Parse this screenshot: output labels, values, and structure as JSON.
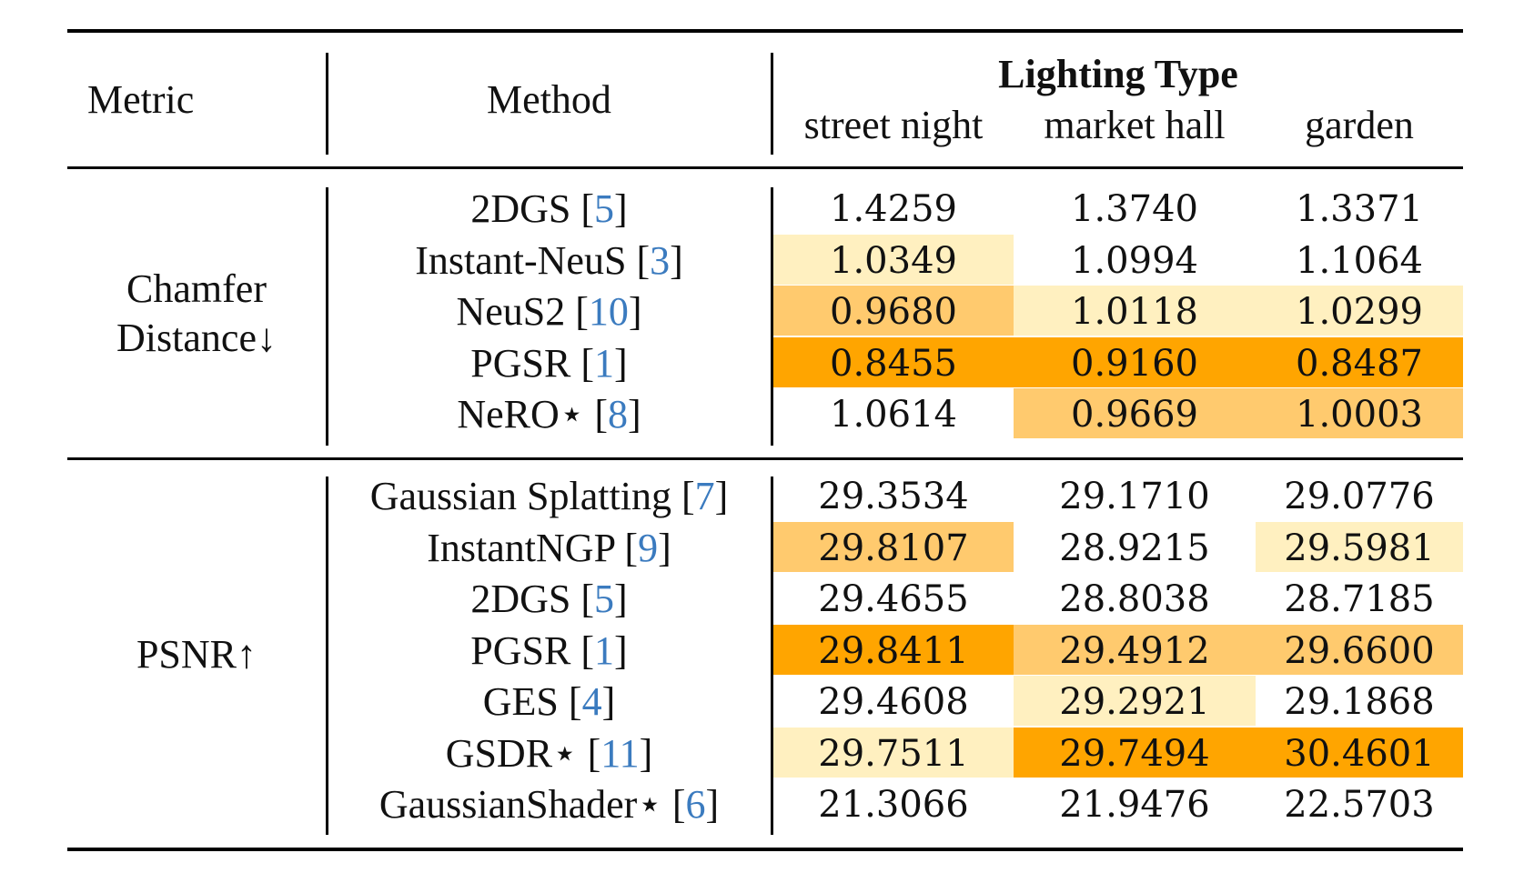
{
  "header": {
    "metric": "Metric",
    "method": "Method",
    "group_title": "Lighting Type",
    "columns": [
      "street night",
      "market hall",
      "garden"
    ]
  },
  "colors": {
    "best": "#ffa500",
    "second": "#ffca6e",
    "third": "#fff0c0",
    "citation": "#3b7bbf"
  },
  "sections": [
    {
      "metric_lines": [
        "Chamfer",
        "Distance↓"
      ],
      "rows": [
        {
          "method": "2DGS",
          "cite": "5",
          "values": [
            "1.4259",
            "1.3740",
            "1.3371"
          ],
          "ranks": [
            0,
            0,
            0
          ]
        },
        {
          "method": "Instant-NeuS",
          "cite": "3",
          "values": [
            "1.0349",
            "1.0994",
            "1.1064"
          ],
          "ranks": [
            3,
            0,
            0
          ]
        },
        {
          "method": "NeuS2",
          "cite": "10",
          "values": [
            "0.9680",
            "1.0118",
            "1.0299"
          ],
          "ranks": [
            2,
            3,
            3
          ]
        },
        {
          "method": "PGSR",
          "cite": "1",
          "values": [
            "0.8455",
            "0.9160",
            "0.8487"
          ],
          "ranks": [
            1,
            1,
            1
          ]
        },
        {
          "method": "NeRO⋆",
          "cite": "8",
          "values": [
            "1.0614",
            "0.9669",
            "1.0003"
          ],
          "ranks": [
            0,
            2,
            2
          ]
        }
      ]
    },
    {
      "metric_lines": [
        "PSNR↑"
      ],
      "rows": [
        {
          "method": "Gaussian Splatting",
          "cite": "7",
          "values": [
            "29.3534",
            "29.1710",
            "29.0776"
          ],
          "ranks": [
            0,
            0,
            0
          ]
        },
        {
          "method": "InstantNGP",
          "cite": "9",
          "values": [
            "29.8107",
            "28.9215",
            "29.5981"
          ],
          "ranks": [
            2,
            0,
            3
          ]
        },
        {
          "method": "2DGS",
          "cite": "5",
          "values": [
            "29.4655",
            "28.8038",
            "28.7185"
          ],
          "ranks": [
            0,
            0,
            0
          ]
        },
        {
          "method": "PGSR",
          "cite": "1",
          "values": [
            "29.8411",
            "29.4912",
            "29.6600"
          ],
          "ranks": [
            1,
            2,
            2
          ]
        },
        {
          "method": "GES",
          "cite": "4",
          "values": [
            "29.4608",
            "29.2921",
            "29.1868"
          ],
          "ranks": [
            0,
            3,
            0
          ]
        },
        {
          "method": "GSDR⋆",
          "cite": "11",
          "values": [
            "29.7511",
            "29.7494",
            "30.4601"
          ],
          "ranks": [
            3,
            1,
            1
          ]
        },
        {
          "method": "GaussianShader⋆",
          "cite": "6",
          "values": [
            "21.3066",
            "21.9476",
            "22.5703"
          ],
          "ranks": [
            0,
            0,
            0
          ]
        }
      ]
    }
  ]
}
